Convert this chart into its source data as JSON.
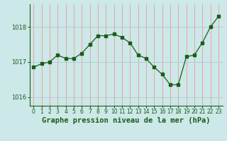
{
  "x": [
    0,
    1,
    2,
    3,
    4,
    5,
    6,
    7,
    8,
    9,
    10,
    11,
    12,
    13,
    14,
    15,
    16,
    17,
    18,
    19,
    20,
    21,
    22,
    23
  ],
  "y": [
    1016.85,
    1016.95,
    1017.0,
    1017.2,
    1017.1,
    1017.1,
    1017.25,
    1017.5,
    1017.75,
    1017.75,
    1017.8,
    1017.7,
    1017.55,
    1017.2,
    1017.1,
    1016.85,
    1016.65,
    1016.35,
    1016.35,
    1017.15,
    1017.2,
    1017.55,
    1018.0,
    1018.3
  ],
  "line_color": "#1a5c1a",
  "marker_color": "#1a5c1a",
  "bg_color": "#cce8e8",
  "grid_color_v": "#ee9999",
  "grid_color_h": "#aacccc",
  "axis_color": "#1a5c1a",
  "title": "Graphe pression niveau de la mer (hPa)",
  "ylabel_ticks": [
    1016,
    1017,
    1018
  ],
  "xlim": [
    -0.5,
    23.5
  ],
  "ylim": [
    1015.75,
    1018.65
  ],
  "title_fontsize": 7.5,
  "tick_fontsize": 6.0
}
